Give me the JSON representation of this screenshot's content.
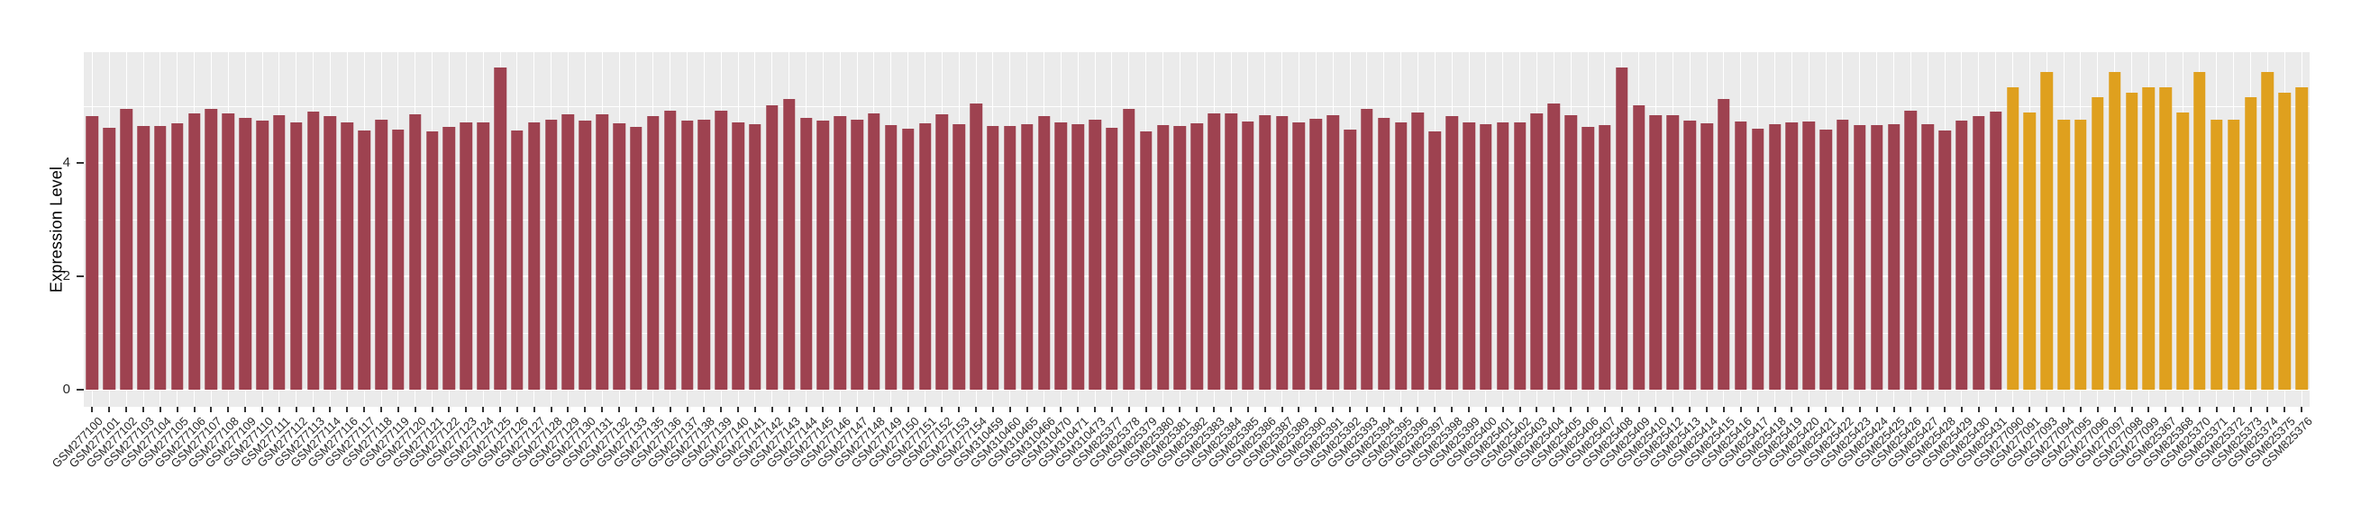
{
  "figure": {
    "title": "",
    "panel_bg": "#EBEBEB",
    "grid_color": "#FFFFFF",
    "axis_text_color": "#262626",
    "tick_mark_color": "#333333"
  },
  "chart_data": {
    "type": "bar",
    "title": "",
    "xlabel": "",
    "ylabel": "Expression Level",
    "ylim": [
      0,
      5.95
    ],
    "yticks": [
      0,
      2,
      4
    ],
    "yticks_minor": [
      1,
      3,
      5
    ],
    "grid": "on",
    "legend": "none",
    "x_tick_label_angle": 45,
    "groups": [
      {
        "name": "group-1-maroon",
        "color": "#9E4250",
        "start": 0,
        "count": 113
      },
      {
        "name": "group-2-orange",
        "color": "#DFA01E",
        "start": 113,
        "count": 18
      }
    ],
    "categories": [
      "GSM277100",
      "GSM277101",
      "GSM277102",
      "GSM277103",
      "GSM277104",
      "GSM277105",
      "GSM277106",
      "GSM277107",
      "GSM277108",
      "GSM277109",
      "GSM277110",
      "GSM277111",
      "GSM277112",
      "GSM277113",
      "GSM277114",
      "GSM277116",
      "GSM277117",
      "GSM277118",
      "GSM277119",
      "GSM277120",
      "GSM277121",
      "GSM277122",
      "GSM277123",
      "GSM277124",
      "GSM277125",
      "GSM277126",
      "GSM277127",
      "GSM277128",
      "GSM277129",
      "GSM277130",
      "GSM277131",
      "GSM277132",
      "GSM277133",
      "GSM277135",
      "GSM277136",
      "GSM277137",
      "GSM277138",
      "GSM277139",
      "GSM277140",
      "GSM277141",
      "GSM277142",
      "GSM277143",
      "GSM277144",
      "GSM277145",
      "GSM277146",
      "GSM277147",
      "GSM277148",
      "GSM277149",
      "GSM277150",
      "GSM277151",
      "GSM277152",
      "GSM277153",
      "GSM277154",
      "GSM310459",
      "GSM310460",
      "GSM310465",
      "GSM310466",
      "GSM310470",
      "GSM310471",
      "GSM310473",
      "GSM825377",
      "GSM825378",
      "GSM825379",
      "GSM825380",
      "GSM825381",
      "GSM825382",
      "GSM825383",
      "GSM825384",
      "GSM825385",
      "GSM825386",
      "GSM825387",
      "GSM825389",
      "GSM825390",
      "GSM825391",
      "GSM825392",
      "GSM825393",
      "GSM825394",
      "GSM825395",
      "GSM825396",
      "GSM825397",
      "GSM825398",
      "GSM825399",
      "GSM825400",
      "GSM825401",
      "GSM825402",
      "GSM825403",
      "GSM825404",
      "GSM825405",
      "GSM825406",
      "GSM825407",
      "GSM825408",
      "GSM825409",
      "GSM825410",
      "GSM825412",
      "GSM825413",
      "GSM825414",
      "GSM825415",
      "GSM825416",
      "GSM825417",
      "GSM825418",
      "GSM825419",
      "GSM825420",
      "GSM825421",
      "GSM825422",
      "GSM825423",
      "GSM825424",
      "GSM825425",
      "GSM825426",
      "GSM825427",
      "GSM825428",
      "GSM825429",
      "GSM825430",
      "GSM825431",
      "GSM277090",
      "GSM277091",
      "GSM277093",
      "GSM277094",
      "GSM277095",
      "GSM277096",
      "GSM277097",
      "GSM277098",
      "GSM277099",
      "GSM825367",
      "GSM825368",
      "GSM825370",
      "GSM825371",
      "GSM825372",
      "GSM825373",
      "GSM825374",
      "GSM825375",
      "GSM825376"
    ],
    "values": [
      4.83,
      4.62,
      4.96,
      4.65,
      4.65,
      4.7,
      4.87,
      4.95,
      4.88,
      4.79,
      4.74,
      4.84,
      4.71,
      4.9,
      4.82,
      4.72,
      4.57,
      4.77,
      4.58,
      4.85,
      4.55,
      4.63,
      4.72,
      4.72,
      5.68,
      4.57,
      4.71,
      4.77,
      4.85,
      4.74,
      4.85,
      4.7,
      4.63,
      4.82,
      4.92,
      4.74,
      4.76,
      4.92,
      4.71,
      4.69,
      5.02,
      5.12,
      4.79,
      4.74,
      4.83,
      4.76,
      4.87,
      4.67,
      4.6,
      4.7,
      4.85,
      4.68,
      5.04,
      4.65,
      4.65,
      4.68,
      4.82,
      4.72,
      4.68,
      4.76,
      4.62,
      4.96,
      4.55,
      4.66,
      4.65,
      4.7,
      4.87,
      4.88,
      4.73,
      4.84,
      4.83,
      4.72,
      4.78,
      4.84,
      4.58,
      4.96,
      4.79,
      4.71,
      4.89,
      4.55,
      4.83,
      4.71,
      4.69,
      4.72,
      4.72,
      4.87,
      5.04,
      4.84,
      4.63,
      4.67,
      5.68,
      5.02,
      4.84,
      4.84,
      4.75,
      4.7,
      5.13,
      4.73,
      4.6,
      4.69,
      4.71,
      4.73,
      4.59,
      4.76,
      4.67,
      4.66,
      4.69,
      4.92,
      4.69,
      4.57,
      4.75,
      4.82,
      4.91,
      5.33,
      4.89,
      5.61,
      4.76,
      4.76,
      5.16,
      5.61,
      5.24,
      5.33,
      5.33,
      4.89,
      5.61,
      4.76,
      4.76,
      5.16,
      5.61,
      5.24,
      5.33
    ]
  }
}
